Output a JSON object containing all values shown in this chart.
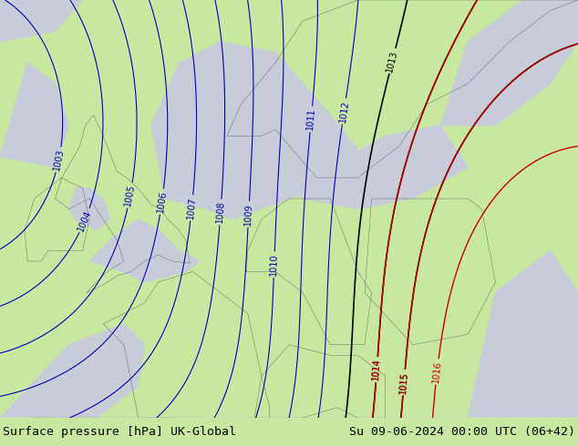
{
  "title_left": "Surface pressure [hPa] UK-Global",
  "title_right": "Su 09-06-2024 00:00 UTC (06+42)",
  "title_fontsize": 9.5,
  "title_color": "black",
  "background_color": "#c8e8a0",
  "fig_width": 6.34,
  "fig_height": 4.9,
  "land_color": "#c8e8a0",
  "sea_color": "#c8ccd8",
  "border_color": "#606060",
  "isobar_blue_color": "#0000bb",
  "isobar_red_color": "#cc0000",
  "isobar_black_color": "#000000",
  "label_fontsize": 7,
  "footer_bg": "#c8e8a0",
  "lon_min": -12,
  "lon_max": 30,
  "lat_min": 44,
  "lat_max": 64
}
